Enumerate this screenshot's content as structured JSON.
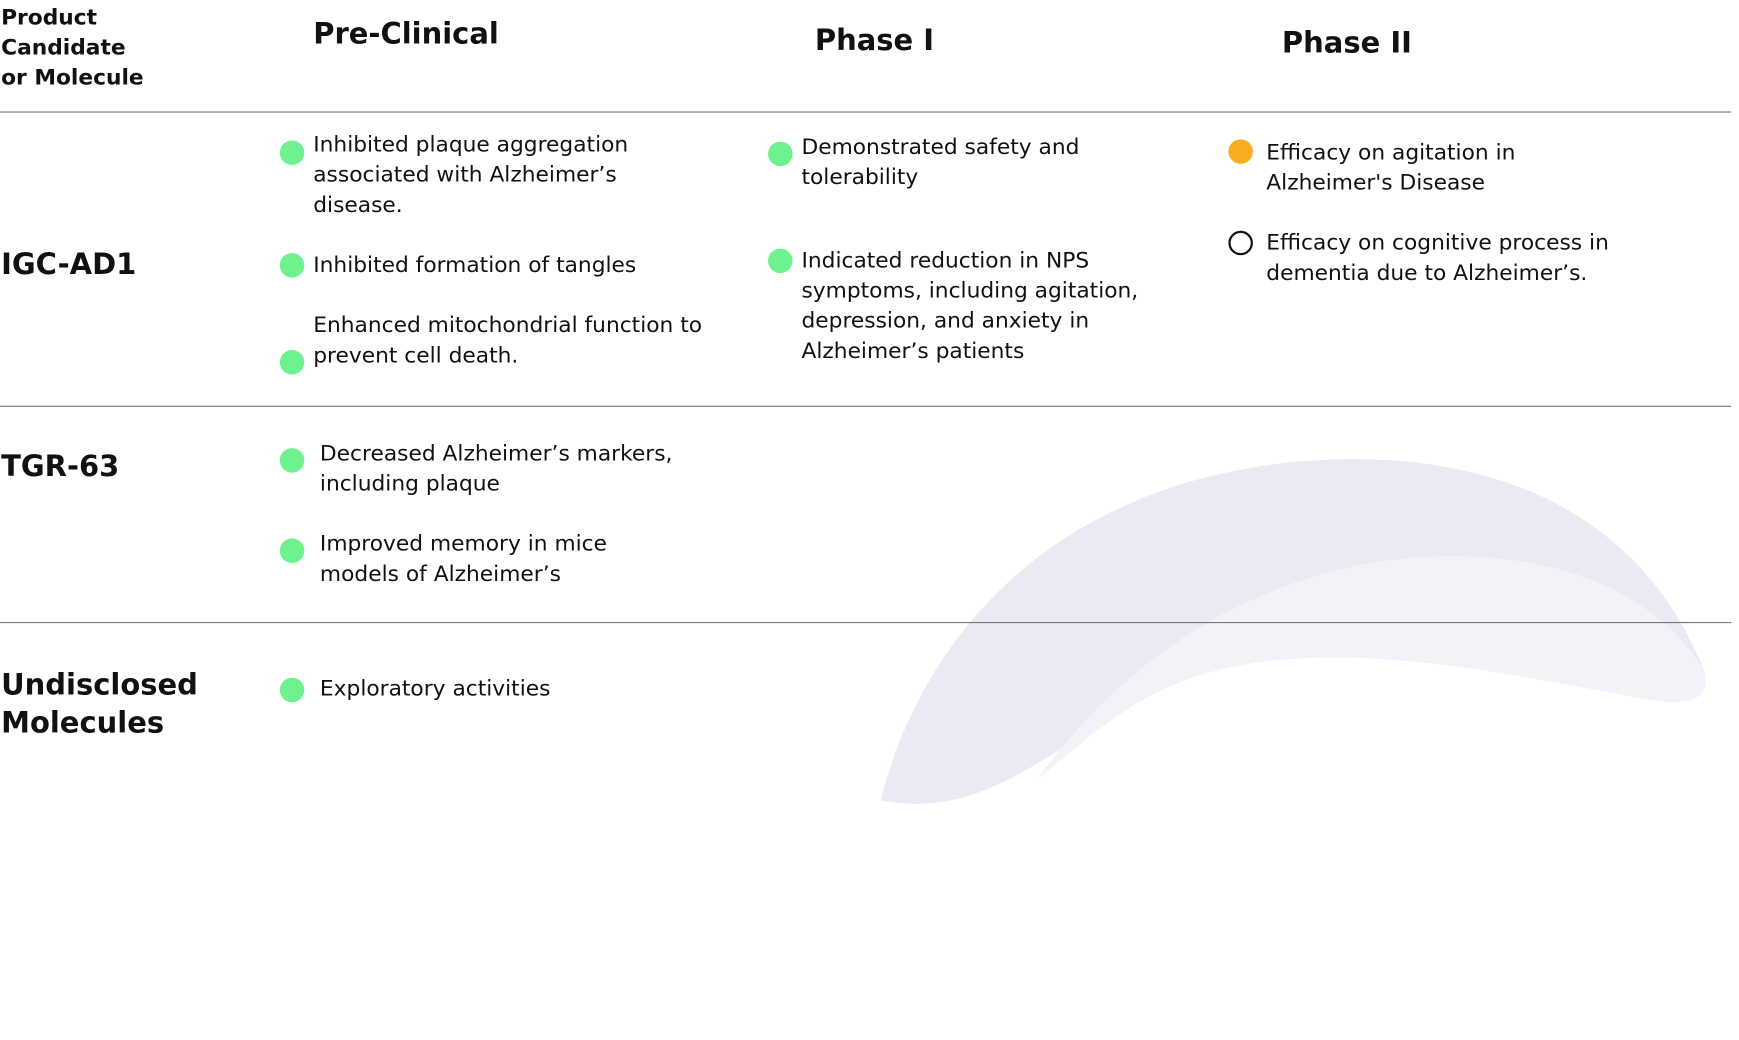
{
  "header": {
    "title": "Product Candidate or Molecule",
    "columns": [
      "Pre-Clinical",
      "Phase I",
      "Phase II"
    ]
  },
  "rows": [
    {
      "name": "IGC-AD1",
      "cells": [
        {
          "items": [
            {
              "text": "Inhibited plaque aggregation associated with Alzheimer’s disease.",
              "dot": "#6ef28f"
            },
            {
              "text": "Inhibited formation of tangles",
              "dot": "#6ef28f"
            },
            {
              "text": "Enhanced mitochondrial function to prevent cell death.",
              "dot": "#6ef28f"
            }
          ]
        },
        {
          "items": [
            {
              "text": "Demonstrated safety and tolerability",
              "dot": "#6ef28f"
            },
            {
              "text": "Indicated reduction in NPS symptoms, including agitation, depression, and anxiety in Alzheimer’s patients",
              "dot": "#6ef28f"
            }
          ]
        },
        {
          "items": [
            {
              "text": "Efficacy on agitation in Alzheimer's Disease",
              "dot": "#f9ae22"
            },
            {
              "text": "Efficacy on cognitive process in dementia due to Alzheimer’s.",
              "dot": "outline"
            }
          ]
        }
      ]
    },
    {
      "name": "TGR-63",
      "cells": [
        {
          "items": [
            {
              "text": "Decreased Alzheimer’s markers, including plaque",
              "dot": "#6ef28f"
            },
            {
              "text": "Improved memory in mice models of Alzheimer’s",
              "dot": "#6ef28f"
            }
          ]
        }
      ]
    },
    {
      "name": "Undisclosed Molecules",
      "cells": [
        {
          "items": [
            {
              "text": "Exploratory activities",
              "dot": "#6ef28f"
            }
          ]
        }
      ]
    }
  ]
}
